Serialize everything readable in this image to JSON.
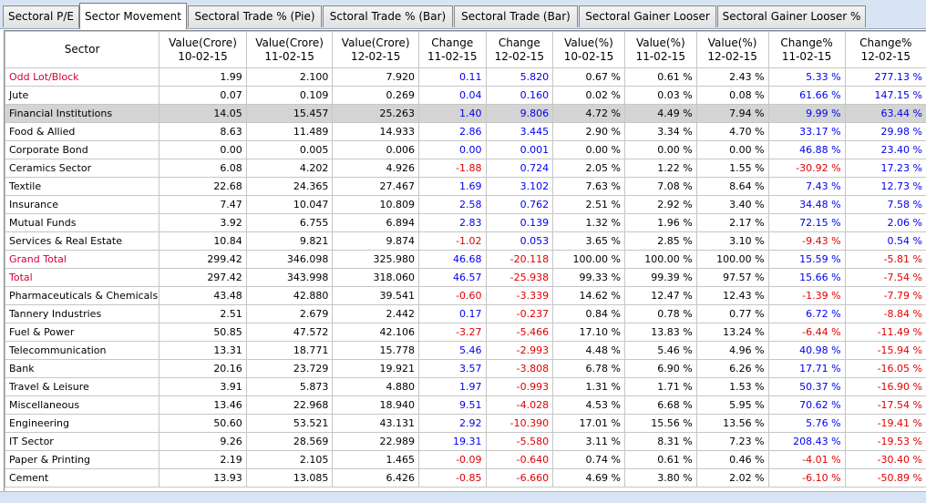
{
  "tabs": [
    {
      "label": "Sectoral P/E",
      "active": false
    },
    {
      "label": "Sector Movement",
      "active": true
    },
    {
      "label": "Sectoral Trade % (Pie)",
      "active": false
    },
    {
      "label": "Sctoral Trade % (Bar)",
      "active": false
    },
    {
      "label": "Sectoral Trade (Bar)",
      "active": false
    },
    {
      "label": "Sectoral Gainer Looser",
      "active": false
    },
    {
      "label": "Sectoral Gainer Looser %",
      "active": false
    }
  ],
  "table": {
    "headers": [
      [
        "Sector",
        ""
      ],
      [
        "Value(Crore)",
        "10-02-15"
      ],
      [
        "Value(Crore)",
        "11-02-15"
      ],
      [
        "Value(Crore)",
        "12-02-15"
      ],
      [
        "Change",
        "11-02-15"
      ],
      [
        "Change",
        "12-02-15"
      ],
      [
        "Value(%)",
        "10-02-15"
      ],
      [
        "Value(%)",
        "11-02-15"
      ],
      [
        "Value(%)",
        "12-02-15"
      ],
      [
        "Change%",
        "11-02-15"
      ],
      [
        "Change%",
        "12-02-15"
      ]
    ],
    "rows": [
      {
        "cells": [
          "Odd Lot/Block",
          "1.99",
          "2.100",
          "7.920",
          "0.11",
          "5.820",
          "0.67 %",
          "0.61 %",
          "2.43 %",
          "5.33 %",
          "277.13 %"
        ],
        "highlight": true,
        "selected": false
      },
      {
        "cells": [
          "Jute",
          "0.07",
          "0.109",
          "0.269",
          "0.04",
          "0.160",
          "0.02 %",
          "0.03 %",
          "0.08 %",
          "61.66 %",
          "147.15 %"
        ],
        "highlight": false,
        "selected": false
      },
      {
        "cells": [
          "Financial Institutions",
          "14.05",
          "15.457",
          "25.263",
          "1.40",
          "9.806",
          "4.72 %",
          "4.49 %",
          "7.94 %",
          "9.99 %",
          "63.44 %"
        ],
        "highlight": false,
        "selected": true
      },
      {
        "cells": [
          "Food & Allied",
          "8.63",
          "11.489",
          "14.933",
          "2.86",
          "3.445",
          "2.90 %",
          "3.34 %",
          "4.70 %",
          "33.17 %",
          "29.98 %"
        ],
        "highlight": false,
        "selected": false
      },
      {
        "cells": [
          "Corporate Bond",
          "0.00",
          "0.005",
          "0.006",
          "0.00",
          "0.001",
          "0.00 %",
          "0.00 %",
          "0.00 %",
          "46.88 %",
          "23.40 %"
        ],
        "highlight": false,
        "selected": false
      },
      {
        "cells": [
          "Ceramics Sector",
          "6.08",
          "4.202",
          "4.926",
          "-1.88",
          "0.724",
          "2.05 %",
          "1.22 %",
          "1.55 %",
          "-30.92 %",
          "17.23 %"
        ],
        "highlight": false,
        "selected": false
      },
      {
        "cells": [
          "Textile",
          "22.68",
          "24.365",
          "27.467",
          "1.69",
          "3.102",
          "7.63 %",
          "7.08 %",
          "8.64 %",
          "7.43 %",
          "12.73 %"
        ],
        "highlight": false,
        "selected": false
      },
      {
        "cells": [
          "Insurance",
          "7.47",
          "10.047",
          "10.809",
          "2.58",
          "0.762",
          "2.51 %",
          "2.92 %",
          "3.40 %",
          "34.48 %",
          "7.58 %"
        ],
        "highlight": false,
        "selected": false
      },
      {
        "cells": [
          "Mutual Funds",
          "3.92",
          "6.755",
          "6.894",
          "2.83",
          "0.139",
          "1.32 %",
          "1.96 %",
          "2.17 %",
          "72.15 %",
          "2.06 %"
        ],
        "highlight": false,
        "selected": false
      },
      {
        "cells": [
          "Services & Real Estate",
          "10.84",
          "9.821",
          "9.874",
          "-1.02",
          "0.053",
          "3.65 %",
          "2.85 %",
          "3.10 %",
          "-9.43 %",
          "0.54 %"
        ],
        "highlight": false,
        "selected": false
      },
      {
        "cells": [
          "Grand Total",
          "299.42",
          "346.098",
          "325.980",
          "46.68",
          "-20.118",
          "100.00 %",
          "100.00 %",
          "100.00 %",
          "15.59 %",
          "-5.81 %"
        ],
        "highlight": true,
        "selected": false
      },
      {
        "cells": [
          "Total",
          "297.42",
          "343.998",
          "318.060",
          "46.57",
          "-25.938",
          "99.33 %",
          "99.39 %",
          "97.57 %",
          "15.66 %",
          "-7.54 %"
        ],
        "highlight": true,
        "selected": false
      },
      {
        "cells": [
          "Pharmaceuticals & Chemicals",
          "43.48",
          "42.880",
          "39.541",
          "-0.60",
          "-3.339",
          "14.62 %",
          "12.47 %",
          "12.43 %",
          "-1.39 %",
          "-7.79 %"
        ],
        "highlight": false,
        "selected": false
      },
      {
        "cells": [
          "Tannery Industries",
          "2.51",
          "2.679",
          "2.442",
          "0.17",
          "-0.237",
          "0.84 %",
          "0.78 %",
          "0.77 %",
          "6.72 %",
          "-8.84 %"
        ],
        "highlight": false,
        "selected": false
      },
      {
        "cells": [
          "Fuel & Power",
          "50.85",
          "47.572",
          "42.106",
          "-3.27",
          "-5.466",
          "17.10 %",
          "13.83 %",
          "13.24 %",
          "-6.44 %",
          "-11.49 %"
        ],
        "highlight": false,
        "selected": false
      },
      {
        "cells": [
          "Telecommunication",
          "13.31",
          "18.771",
          "15.778",
          "5.46",
          "-2.993",
          "4.48 %",
          "5.46 %",
          "4.96 %",
          "40.98 %",
          "-15.94 %"
        ],
        "highlight": false,
        "selected": false
      },
      {
        "cells": [
          "Bank",
          "20.16",
          "23.729",
          "19.921",
          "3.57",
          "-3.808",
          "6.78 %",
          "6.90 %",
          "6.26 %",
          "17.71 %",
          "-16.05 %"
        ],
        "highlight": false,
        "selected": false
      },
      {
        "cells": [
          "Travel & Leisure",
          "3.91",
          "5.873",
          "4.880",
          "1.97",
          "-0.993",
          "1.31 %",
          "1.71 %",
          "1.53 %",
          "50.37 %",
          "-16.90 %"
        ],
        "highlight": false,
        "selected": false
      },
      {
        "cells": [
          "Miscellaneous",
          "13.46",
          "22.968",
          "18.940",
          "9.51",
          "-4.028",
          "4.53 %",
          "6.68 %",
          "5.95 %",
          "70.62 %",
          "-17.54 %"
        ],
        "highlight": false,
        "selected": false
      },
      {
        "cells": [
          "Engineering",
          "50.60",
          "53.521",
          "43.131",
          "2.92",
          "-10.390",
          "17.01 %",
          "15.56 %",
          "13.56 %",
          "5.76 %",
          "-19.41 %"
        ],
        "highlight": false,
        "selected": false
      },
      {
        "cells": [
          "IT Sector",
          "9.26",
          "28.569",
          "22.989",
          "19.31",
          "-5.580",
          "3.11 %",
          "8.31 %",
          "7.23 %",
          "208.43 %",
          "-19.53 %"
        ],
        "highlight": false,
        "selected": false
      },
      {
        "cells": [
          "Paper & Printing",
          "2.19",
          "2.105",
          "1.465",
          "-0.09",
          "-0.640",
          "0.74 %",
          "0.61 %",
          "0.46 %",
          "-4.01 %",
          "-30.40 %"
        ],
        "highlight": false,
        "selected": false
      },
      {
        "cells": [
          "Cement",
          "13.93",
          "13.085",
          "6.426",
          "-0.85",
          "-6.660",
          "4.69 %",
          "3.80 %",
          "2.02 %",
          "-6.10 %",
          "-50.89 %"
        ],
        "highlight": false,
        "selected": false
      }
    ]
  },
  "colors": {
    "positive": "#0000ee",
    "negative": "#e00000",
    "highlight_name": "#d4003a",
    "selected_row_bg": "#d4d4d4",
    "tabbar_bg": "#d8e4f4"
  }
}
